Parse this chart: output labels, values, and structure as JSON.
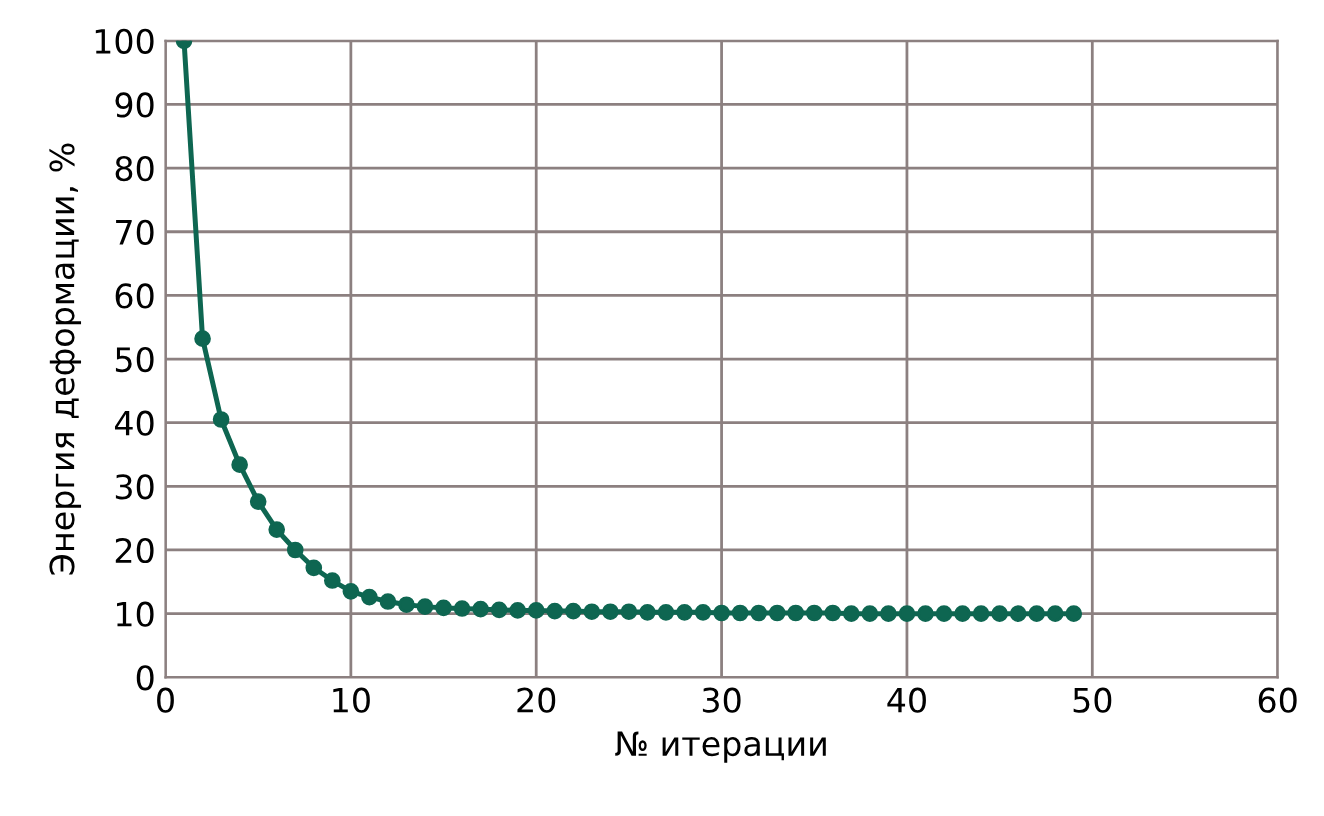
{
  "chart_data": {
    "type": "line",
    "xlabel": "№ итерации",
    "ylabel": "Энергия деформации, %",
    "xlim": [
      0,
      60
    ],
    "xticks": [
      0,
      10,
      20,
      30,
      40,
      50,
      60
    ],
    "ylim": [
      0,
      100
    ],
    "yticks": [
      0,
      10,
      20,
      30,
      40,
      50,
      60,
      70,
      80,
      90,
      100
    ],
    "grid": true,
    "marker": "circle",
    "line_style": "solid",
    "series": [
      {
        "color": "#0e6651",
        "x": [
          1,
          2,
          3,
          4,
          5,
          6,
          7,
          8,
          9,
          10,
          11,
          12,
          13,
          14,
          15,
          16,
          17,
          18,
          19,
          20,
          21,
          22,
          23,
          24,
          25,
          26,
          27,
          28,
          29,
          30,
          31,
          32,
          33,
          34,
          35,
          36,
          37,
          38,
          39,
          40,
          41,
          42,
          43,
          44,
          45,
          46,
          47,
          48,
          49
        ],
        "values": [
          100,
          53.2,
          40.5,
          33.4,
          27.6,
          23.2,
          20,
          17.2,
          15.2,
          13.5,
          12.6,
          11.9,
          11.4,
          11.1,
          10.9,
          10.8,
          10.7,
          10.6,
          10.5,
          10.5,
          10.4,
          10.4,
          10.3,
          10.3,
          10.3,
          10.2,
          10.2,
          10.2,
          10.2,
          10.1,
          10.1,
          10.1,
          10.1,
          10.1,
          10.1,
          10.1,
          10.0,
          10.0,
          10.0,
          10.0,
          10.0,
          10.0,
          10.0,
          10.0,
          10.0,
          10.0,
          10.0,
          10.0,
          10.0
        ]
      }
    ]
  }
}
